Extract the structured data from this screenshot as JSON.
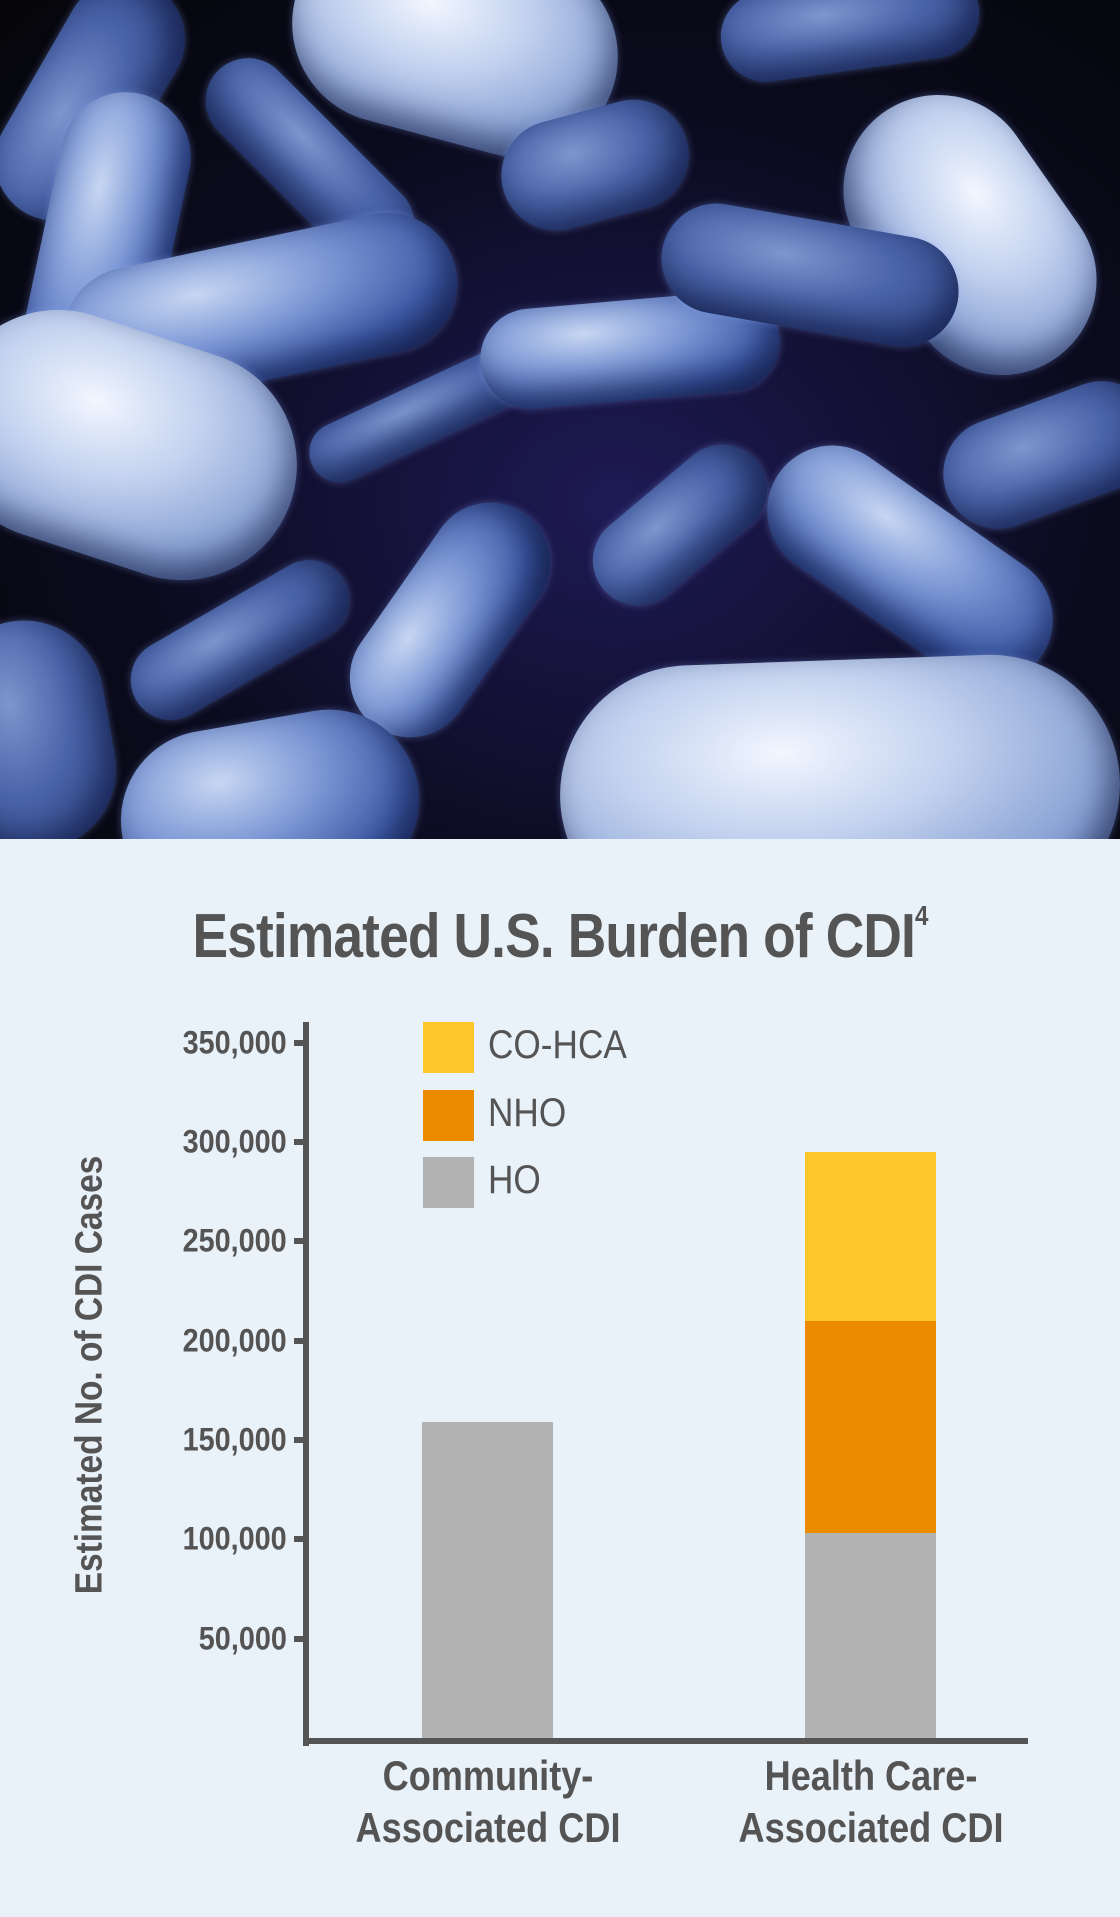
{
  "header_image": {
    "subject": "bacteria-micrograph",
    "colors": {
      "background": "#0b0b1e",
      "cells": "#7f9ad6"
    }
  },
  "chart_data": {
    "type": "bar",
    "stacked": true,
    "title": "Estimated U.S. Burden of CDI",
    "title_superscript": "4",
    "xlabel": "",
    "ylabel": "Estimated No. of CDI Cases",
    "ylim": [
      0,
      350000
    ],
    "yticks": [
      50000,
      100000,
      150000,
      200000,
      250000,
      300000,
      350000
    ],
    "ytick_labels": [
      "50,000",
      "100,000",
      "150,000",
      "200,000",
      "250,000",
      "300,000",
      "350,000"
    ],
    "categories": [
      "Community-Associated CDI",
      "Health Care-Associated CDI"
    ],
    "category_lines": [
      [
        "Community-",
        "Associated CDI"
      ],
      [
        "Health Care-",
        "Associated CDI"
      ]
    ],
    "series": [
      {
        "name": "HO",
        "color": "#b1b2b1",
        "values": [
          159000,
          103000
        ]
      },
      {
        "name": "NHO",
        "color": "#ec8b00",
        "values": [
          0,
          107000
        ]
      },
      {
        "name": "CO-HCA",
        "color": "#ffc72c",
        "values": [
          0,
          85000
        ]
      }
    ],
    "legend": [
      {
        "label": "CO-HCA",
        "color": "#ffc72c"
      },
      {
        "label": "NHO",
        "color": "#ec8b00"
      },
      {
        "label": "HO",
        "color": "#b1b2b1"
      }
    ],
    "legend_position": "upper-left-inside",
    "grid": false
  },
  "colors": {
    "page_background": "#e9f1f9",
    "text": "#545454",
    "axis": "#555555"
  }
}
